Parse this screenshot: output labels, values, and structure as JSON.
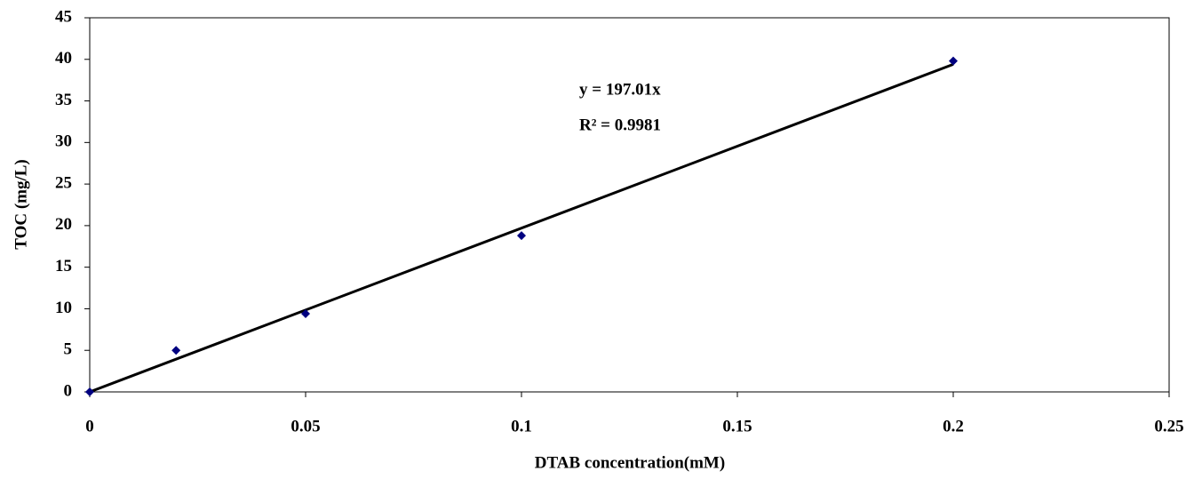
{
  "chart_data": {
    "type": "scatter",
    "x_label": "DTAB concentration(mM)",
    "y_label": "TOC (mg/L)",
    "x": [
      0,
      0.02,
      0.05,
      0.1,
      0.2
    ],
    "values": [
      0,
      5,
      9.4,
      18.8,
      39.8
    ],
    "color": "#000080",
    "trendline": {
      "slope": 197.01,
      "color": "#000000"
    },
    "annotations": [
      "y = 197.01x",
      "R² = 0.9981"
    ],
    "xlim": [
      0,
      0.25
    ],
    "xticks": [
      0,
      0.05,
      0.1,
      0.15,
      0.2,
      0.25
    ],
    "ylim": [
      0,
      45
    ],
    "yticks": [
      0,
      5,
      10,
      15,
      20,
      25,
      30,
      35,
      40,
      45
    ],
    "grid": false
  }
}
